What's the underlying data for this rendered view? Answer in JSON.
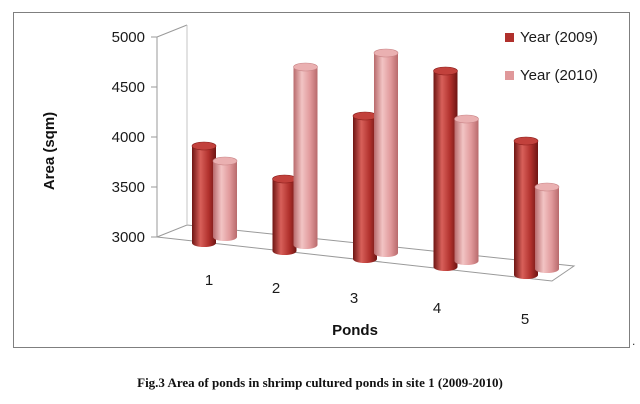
{
  "chart_data": {
    "type": "bar",
    "style": "3d-cylinder",
    "categories": [
      "1",
      "2",
      "3",
      "4",
      "5"
    ],
    "series": [
      {
        "name": "Year (2009)",
        "values": [
          3970,
          3720,
          4430,
          4960,
          4340
        ],
        "color": "#b0302c"
      },
      {
        "name": "Year (2010)",
        "values": [
          3760,
          4780,
          5000,
          4420,
          3820
        ],
        "color": "#e0989a"
      }
    ],
    "xlabel": "Ponds",
    "ylabel": "Area (sqm)",
    "ylim": [
      3000,
      5000
    ],
    "yticks": [
      "3000",
      "3500",
      "4000",
      "4500",
      "5000"
    ],
    "legend": "right",
    "grid": false
  },
  "caption": "Fig.3 Area of ponds in shrimp cultured ponds in site 1 (2009-2010)",
  "trailing_mark": "."
}
